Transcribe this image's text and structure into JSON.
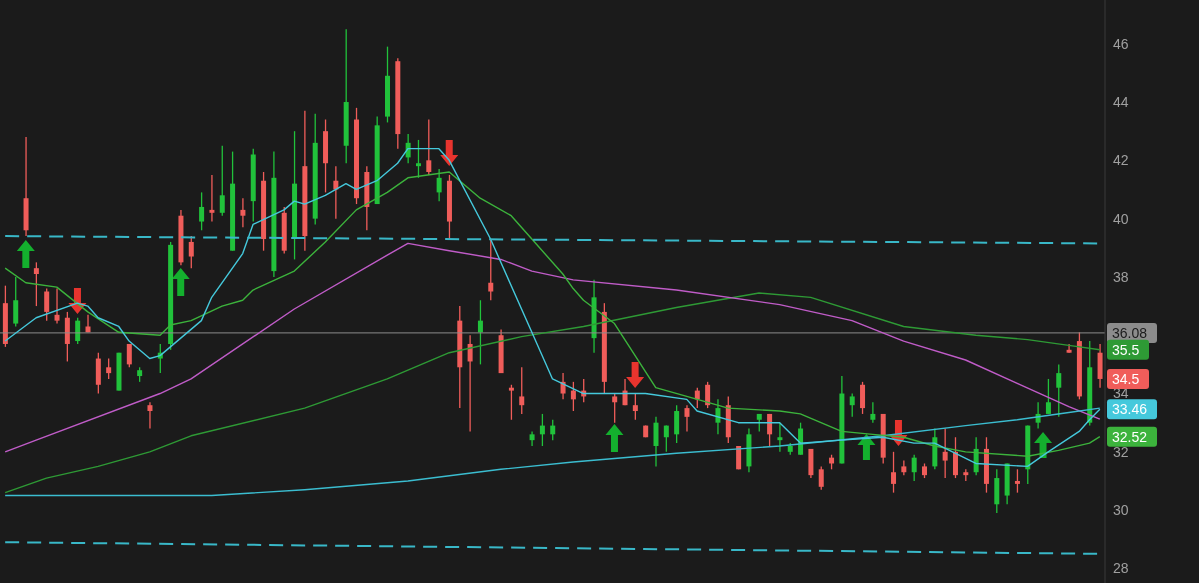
{
  "chart_data": {
    "type": "candlestick",
    "categories": [
      null,
      null,
      null,
      null,
      null,
      null,
      null,
      null,
      null,
      null,
      null,
      null,
      null,
      null,
      null,
      null,
      null,
      null,
      null,
      null,
      null,
      null,
      null,
      null,
      null,
      null,
      null,
      null,
      null,
      null,
      null,
      null,
      null,
      null,
      null,
      null,
      null,
      null,
      null,
      null,
      null,
      null,
      null,
      null,
      null,
      null,
      null,
      null,
      null,
      null,
      null,
      null,
      null,
      null,
      null,
      null,
      null,
      null,
      null,
      null,
      null,
      null,
      null,
      null,
      null,
      null,
      null,
      null,
      null,
      null,
      null,
      null,
      null,
      null,
      null,
      null,
      null,
      null,
      null,
      null,
      null,
      null,
      null,
      null,
      null,
      null,
      null,
      null,
      null,
      null,
      null,
      null,
      null,
      null,
      null,
      null,
      null,
      null,
      null,
      null,
      null,
      null,
      null,
      null,
      null,
      null,
      null
    ],
    "ohlc": [
      [
        37.1,
        37.7,
        35.6,
        35.7
      ],
      [
        36.4,
        38.0,
        36.3,
        37.2
      ],
      [
        40.7,
        42.8,
        39.4,
        39.6
      ],
      [
        38.3,
        38.5,
        37.0,
        38.1
      ],
      [
        37.5,
        37.6,
        36.5,
        36.8
      ],
      [
        36.7,
        37.6,
        36.4,
        36.5
      ],
      [
        36.6,
        36.8,
        35.1,
        35.7
      ],
      [
        35.8,
        36.6,
        35.7,
        36.5
      ],
      [
        36.3,
        36.7,
        36.1,
        36.1
      ],
      [
        35.2,
        35.4,
        34.0,
        34.3
      ],
      [
        34.9,
        35.2,
        34.5,
        34.7
      ],
      [
        34.1,
        35.4,
        34.1,
        35.4
      ],
      [
        35.7,
        35.7,
        34.9,
        35.0
      ],
      [
        34.6,
        34.9,
        34.4,
        34.8
      ],
      [
        33.6,
        33.7,
        32.8,
        33.4
      ],
      [
        35.2,
        35.7,
        34.7,
        35.4
      ],
      [
        35.7,
        39.2,
        35.5,
        39.1
      ],
      [
        40.1,
        40.3,
        38.4,
        38.5
      ],
      [
        39.2,
        39.4,
        38.3,
        38.7
      ],
      [
        39.9,
        40.9,
        39.6,
        40.4
      ],
      [
        40.3,
        41.5,
        39.9,
        40.2
      ],
      [
        40.2,
        42.5,
        40.1,
        40.8
      ],
      [
        38.9,
        42.3,
        38.9,
        41.2
      ],
      [
        40.3,
        40.7,
        39.7,
        40.1
      ],
      [
        40.6,
        42.4,
        39.9,
        42.2
      ],
      [
        41.3,
        41.6,
        38.9,
        39.3
      ],
      [
        38.2,
        42.3,
        38.0,
        41.4
      ],
      [
        40.2,
        40.4,
        38.8,
        38.9
      ],
      [
        39.3,
        43.0,
        38.6,
        41.2
      ],
      [
        41.8,
        43.7,
        38.9,
        39.4
      ],
      [
        40.0,
        43.6,
        39.8,
        42.6
      ],
      [
        43.0,
        43.4,
        40.9,
        41.9
      ],
      [
        41.3,
        41.8,
        40.0,
        41.0
      ],
      [
        42.5,
        46.5,
        41.9,
        44.0
      ],
      [
        43.4,
        43.8,
        40.5,
        40.7
      ],
      [
        41.6,
        41.8,
        39.6,
        40.4
      ],
      [
        40.5,
        43.5,
        40.5,
        43.2
      ],
      [
        43.5,
        45.9,
        43.3,
        44.9
      ],
      [
        45.4,
        45.5,
        42.4,
        42.9
      ],
      [
        42.1,
        42.9,
        41.9,
        42.6
      ],
      [
        41.8,
        42.7,
        41.4,
        41.9
      ],
      [
        42.0,
        43.4,
        41.5,
        41.6
      ],
      [
        40.9,
        41.7,
        40.6,
        41.4
      ],
      [
        41.3,
        41.5,
        39.3,
        39.9
      ],
      [
        36.5,
        37.0,
        33.5,
        34.9
      ],
      [
        35.7,
        36.0,
        32.7,
        35.1
      ],
      [
        36.1,
        37.2,
        35.0,
        36.5
      ],
      [
        37.8,
        39.3,
        37.2,
        37.5
      ],
      [
        36.0,
        36.2,
        34.7,
        34.7
      ],
      [
        34.2,
        34.3,
        33.1,
        34.1
      ],
      [
        33.9,
        34.9,
        33.3,
        33.6
      ],
      [
        32.4,
        32.7,
        32.2,
        32.6
      ],
      [
        32.6,
        33.3,
        32.2,
        32.9
      ],
      [
        32.6,
        33.1,
        32.4,
        32.9
      ],
      [
        34.4,
        34.7,
        33.8,
        34.0
      ],
      [
        34.1,
        34.4,
        33.4,
        33.8
      ],
      [
        34.1,
        34.5,
        33.7,
        33.9
      ],
      [
        35.9,
        37.9,
        35.4,
        37.3
      ],
      [
        36.8,
        37.1,
        34.0,
        34.4
      ],
      [
        33.9,
        34.0,
        33.0,
        33.7
      ],
      [
        34.1,
        34.5,
        33.6,
        33.6
      ],
      [
        33.6,
        34.0,
        33.1,
        33.4
      ],
      [
        32.9,
        32.9,
        32.5,
        32.5
      ],
      [
        32.2,
        33.2,
        31.5,
        33.0
      ],
      [
        32.5,
        32.9,
        32.0,
        32.9
      ],
      [
        32.6,
        33.6,
        32.3,
        33.4
      ],
      [
        33.5,
        33.6,
        32.7,
        33.2
      ],
      [
        34.1,
        34.2,
        33.5,
        33.8
      ],
      [
        34.3,
        34.4,
        33.5,
        33.6
      ],
      [
        33.0,
        33.8,
        32.6,
        33.5
      ],
      [
        33.6,
        33.9,
        32.3,
        32.5
      ],
      [
        32.2,
        32.2,
        31.4,
        31.4
      ],
      [
        31.5,
        32.8,
        31.3,
        32.6
      ],
      [
        33.1,
        33.3,
        32.7,
        33.3
      ],
      [
        33.3,
        33.3,
        32.2,
        32.6
      ],
      [
        32.4,
        33.0,
        32.0,
        32.5
      ],
      [
        32.0,
        32.3,
        31.9,
        32.2
      ],
      [
        31.9,
        33.0,
        31.9,
        32.8
      ],
      [
        32.1,
        32.1,
        31.1,
        31.2
      ],
      [
        31.4,
        31.5,
        30.7,
        30.8
      ],
      [
        31.8,
        31.9,
        31.4,
        31.6
      ],
      [
        31.6,
        34.6,
        31.6,
        34.0
      ],
      [
        33.6,
        34.0,
        33.2,
        33.9
      ],
      [
        34.3,
        34.4,
        33.3,
        33.5
      ],
      [
        33.1,
        33.7,
        33.0,
        33.3
      ],
      [
        33.3,
        33.3,
        31.6,
        31.8
      ],
      [
        31.3,
        32.0,
        30.6,
        30.9
      ],
      [
        31.5,
        31.7,
        31.2,
        31.3
      ],
      [
        31.3,
        31.9,
        31.0,
        31.8
      ],
      [
        31.5,
        31.6,
        31.1,
        31.2
      ],
      [
        31.5,
        32.8,
        31.4,
        32.5
      ],
      [
        32.0,
        32.8,
        31.1,
        31.7
      ],
      [
        32.0,
        32.5,
        31.1,
        31.2
      ],
      [
        31.3,
        31.4,
        31.0,
        31.2
      ],
      [
        31.3,
        32.5,
        31.2,
        32.1
      ],
      [
        32.1,
        32.5,
        30.6,
        30.9
      ],
      [
        30.2,
        31.4,
        29.9,
        31.1
      ],
      [
        30.5,
        31.6,
        30.2,
        31.6
      ],
      [
        31.0,
        31.4,
        30.6,
        30.9
      ],
      [
        31.4,
        32.9,
        30.9,
        32.9
      ],
      [
        33.0,
        33.7,
        32.8,
        33.3
      ],
      [
        33.3,
        34.5,
        33.3,
        33.7
      ],
      [
        34.2,
        35.0,
        33.2,
        34.7
      ],
      [
        35.5,
        35.7,
        35.4,
        35.4
      ],
      [
        35.8,
        36.1,
        33.8,
        33.9
      ],
      [
        33.0,
        35.8,
        32.9,
        34.9
      ],
      [
        35.4,
        35.7,
        34.2,
        34.5
      ]
    ],
    "colors": [
      "#f05d5a",
      "#21c23b",
      "#f05d5a",
      "#f05d5a",
      "#f05d5a",
      "#f05d5a",
      "#f05d5a",
      "#21c23b",
      "#f05d5a",
      "#f05d5a",
      "#f05d5a",
      "#21c23b",
      "#f05d5a",
      "#21c23b",
      "#f05d5a",
      "#21c23b",
      "#21c23b",
      "#f05d5a",
      "#f05d5a",
      "#21c23b",
      "#f05d5a",
      "#21c23b",
      "#21c23b",
      "#f05d5a",
      "#21c23b",
      "#f05d5a",
      "#21c23b",
      "#f05d5a",
      "#21c23b",
      "#f05d5a",
      "#21c23b",
      "#f05d5a",
      "#f05d5a",
      "#21c23b",
      "#f05d5a",
      "#f05d5a",
      "#21c23b",
      "#21c23b",
      "#f05d5a",
      "#21c23b",
      "#21c23b",
      "#f05d5a",
      "#21c23b",
      "#f05d5a",
      "#f05d5a",
      "#f05d5a",
      "#21c23b",
      "#f05d5a",
      "#f05d5a",
      "#f05d5a",
      "#f05d5a",
      "#21c23b",
      "#21c23b",
      "#21c23b",
      "#f05d5a",
      "#f05d5a",
      "#f05d5a",
      "#21c23b",
      "#f05d5a",
      "#f05d5a",
      "#f05d5a",
      "#f05d5a",
      "#f05d5a",
      "#21c23b",
      "#21c23b",
      "#21c23b",
      "#f05d5a",
      "#f05d5a",
      "#f05d5a",
      "#21c23b",
      "#f05d5a",
      "#f05d5a",
      "#21c23b",
      "#21c23b",
      "#f05d5a",
      "#21c23b",
      "#21c23b",
      "#21c23b",
      "#f05d5a",
      "#f05d5a",
      "#f05d5a",
      "#21c23b",
      "#21c23b",
      "#f05d5a",
      "#21c23b",
      "#f05d5a",
      "#f05d5a",
      "#f05d5a",
      "#21c23b",
      "#f05d5a",
      "#21c23b",
      "#f05d5a",
      "#f05d5a",
      "#f05d5a",
      "#21c23b",
      "#f05d5a",
      "#21c23b",
      "#21c23b",
      "#f05d5a",
      "#21c23b",
      "#21c23b",
      "#21c23b",
      "#21c23b",
      "#f05d5a",
      "#f05d5a",
      "#21c23b",
      "#f05d5a"
    ],
    "series": [
      {
        "type": "line",
        "color": "#2e9a35",
        "value_labels": [
          null,
          null,
          null,
          null,
          null,
          null,
          null,
          null,
          null,
          null,
          null,
          null,
          null,
          null,
          null,
          null,
          null,
          null,
          null,
          null,
          null,
          null,
          null,
          null,
          null,
          null,
          null,
          null,
          null,
          null,
          null,
          null,
          null,
          null,
          null,
          null,
          null,
          null,
          null,
          null,
          null,
          null,
          null,
          null,
          null,
          null,
          null,
          null,
          null,
          null,
          null,
          null,
          null,
          null,
          null,
          null,
          null,
          null,
          null,
          null,
          null,
          null,
          null,
          null,
          null,
          null,
          null,
          null,
          null,
          null,
          null,
          null,
          null,
          null,
          null,
          null,
          null,
          null,
          null,
          null,
          null,
          null,
          null,
          null,
          null,
          null,
          null,
          null,
          null,
          null,
          null,
          null,
          null,
          null,
          null,
          null,
          null,
          null,
          null,
          null,
          null,
          null,
          null,
          null,
          null,
          null,
          "35.5"
        ],
        "values": [
          30.6,
          null,
          null,
          null,
          31.1,
          null,
          null,
          null,
          null,
          31.5,
          null,
          null,
          null,
          null,
          32.0,
          null,
          null,
          null,
          32.55,
          null,
          null,
          null,
          null,
          null,
          null,
          null,
          null,
          null,
          null,
          33.5,
          null,
          null,
          null,
          null,
          null,
          null,
          null,
          34.5,
          null,
          null,
          null,
          null,
          null,
          35.4,
          null,
          null,
          null,
          null,
          null,
          null,
          35.95,
          null,
          null,
          null,
          null,
          null,
          36.3,
          null,
          null,
          null,
          null,
          null,
          null,
          null,
          null,
          36.95,
          null,
          null,
          null,
          null,
          null,
          null,
          null,
          37.45,
          null,
          null,
          null,
          null,
          37.3,
          null,
          null,
          null,
          null,
          null,
          null,
          null,
          null,
          36.3,
          null,
          null,
          null,
          null,
          null,
          null,
          36.0,
          null,
          null,
          null,
          null,
          35.85,
          null,
          null,
          null,
          35.65,
          null,
          null,
          35.5
        ]
      },
      {
        "type": "line",
        "color": "#c05cc8",
        "values": [
          32.0,
          null,
          null,
          32.4,
          null,
          null,
          null,
          null,
          null,
          null,
          null,
          null,
          null,
          null,
          null,
          34.0,
          null,
          null,
          34.5,
          null,
          null,
          null,
          null,
          null,
          null,
          null,
          null,
          null,
          36.9,
          null,
          null,
          null,
          null,
          null,
          null,
          null,
          null,
          38.75,
          null,
          39.15,
          null,
          null,
          null,
          38.9,
          null,
          null,
          null,
          null,
          38.6,
          null,
          null,
          38.2,
          null,
          null,
          null,
          37.9,
          null,
          null,
          null,
          null,
          null,
          null,
          null,
          null,
          null,
          37.55,
          null,
          null,
          null,
          null,
          null,
          null,
          null,
          null,
          null,
          37.05,
          null,
          null,
          null,
          null,
          null,
          null,
          36.5,
          null,
          null,
          null,
          null,
          35.8,
          null,
          null,
          null,
          null,
          null,
          35.15,
          null,
          null,
          null,
          null,
          34.35,
          null,
          null,
          null,
          null,
          33.55,
          null,
          null,
          33.12
        ]
      },
      {
        "type": "line",
        "color": "#3bbdd0",
        "values": [
          30.5,
          null,
          null,
          null,
          null,
          null,
          null,
          null,
          null,
          null,
          null,
          null,
          null,
          null,
          null,
          null,
          null,
          null,
          null,
          null,
          30.5,
          null,
          null,
          null,
          null,
          null,
          null,
          null,
          null,
          30.7,
          null,
          null,
          null,
          null,
          null,
          null,
          null,
          null,
          null,
          31.0,
          null,
          null,
          null,
          null,
          null,
          null,
          null,
          null,
          31.4,
          null,
          null,
          null,
          null,
          null,
          null,
          31.65,
          null,
          null,
          null,
          null,
          null,
          null,
          null,
          null,
          null,
          31.95,
          null,
          null,
          null,
          null,
          null,
          null,
          null,
          null,
          null,
          32.2,
          null,
          null,
          null,
          null,
          null,
          null,
          null,
          null,
          null,
          32.55,
          null,
          null,
          null,
          null,
          null,
          null,
          null,
          32.9,
          null,
          null,
          null,
          null,
          33.1,
          null,
          null,
          null,
          null,
          33.35,
          null,
          null,
          33.5
        ]
      },
      {
        "type": "line",
        "color": "#3cb33c",
        "value_labels": [
          null,
          null,
          null,
          null,
          null,
          null,
          null,
          null,
          null,
          null,
          null,
          null,
          null,
          null,
          null,
          null,
          null,
          null,
          null,
          null,
          null,
          null,
          null,
          null,
          null,
          null,
          null,
          null,
          null,
          null,
          null,
          null,
          null,
          null,
          null,
          null,
          null,
          null,
          null,
          null,
          null,
          null,
          null,
          null,
          null,
          null,
          null,
          null,
          null,
          null,
          null,
          null,
          null,
          null,
          null,
          null,
          null,
          null,
          null,
          null,
          null,
          null,
          null,
          null,
          null,
          null,
          null,
          null,
          null,
          null,
          null,
          null,
          null,
          null,
          null,
          null,
          null,
          null,
          null,
          null,
          null,
          null,
          null,
          null,
          null,
          null,
          null,
          null,
          null,
          null,
          null,
          null,
          null,
          null,
          null,
          null,
          null,
          null,
          null,
          null,
          null,
          null,
          null,
          null,
          null,
          null,
          "32.52"
        ],
        "values": [
          38.3,
          null,
          37.8,
          null,
          null,
          37.65,
          null,
          null,
          36.8,
          null,
          null,
          36.1,
          null,
          null,
          null,
          36.0,
          36.35,
          null,
          36.5,
          null,
          null,
          37.0,
          null,
          37.2,
          37.55,
          null,
          null,
          null,
          38.2,
          null,
          null,
          39.2,
          null,
          null,
          40.3,
          null,
          null,
          40.9,
          null,
          41.4,
          null,
          null,
          null,
          41.6,
          null,
          null,
          40.7,
          null,
          null,
          40.1,
          null,
          39.3,
          null,
          null,
          38.1,
          37.6,
          37.2,
          null,
          null,
          36.4,
          null,
          null,
          null,
          34.2,
          null,
          null,
          33.9,
          null,
          null,
          null,
          33.5,
          null,
          null,
          null,
          null,
          33.4,
          null,
          33.3,
          null,
          null,
          null,
          32.7,
          null,
          null,
          32.6,
          null,
          null,
          32.5,
          null,
          null,
          32.2,
          null,
          null,
          32.0,
          null,
          null,
          null,
          null,
          null,
          31.85,
          null,
          null,
          32.05,
          null,
          null,
          32.3,
          32.52
        ]
      },
      {
        "type": "line",
        "color": "#45c9dc",
        "value_labels": [
          null,
          null,
          null,
          null,
          null,
          null,
          null,
          null,
          null,
          null,
          null,
          null,
          null,
          null,
          null,
          null,
          null,
          null,
          null,
          null,
          null,
          null,
          null,
          null,
          null,
          null,
          null,
          null,
          null,
          null,
          null,
          null,
          null,
          null,
          null,
          null,
          null,
          null,
          null,
          null,
          null,
          null,
          null,
          null,
          null,
          null,
          null,
          null,
          null,
          null,
          null,
          null,
          null,
          null,
          null,
          null,
          null,
          null,
          null,
          null,
          null,
          null,
          null,
          null,
          null,
          null,
          null,
          null,
          null,
          null,
          null,
          null,
          null,
          null,
          null,
          null,
          null,
          null,
          null,
          null,
          null,
          null,
          null,
          null,
          null,
          null,
          null,
          null,
          null,
          null,
          null,
          null,
          null,
          null,
          null,
          null,
          null,
          null,
          null,
          null,
          null,
          null,
          null,
          null,
          null,
          null,
          "33.46"
        ],
        "values": [
          35.8,
          null,
          null,
          36.6,
          null,
          null,
          null,
          37.1,
          37.0,
          36.6,
          null,
          36.3,
          35.8,
          null,
          35.2,
          35.3,
          null,
          null,
          null,
          36.5,
          37.3,
          null,
          null,
          38.8,
          39.8,
          null,
          null,
          40.3,
          40.6,
          40.5,
          null,
          40.8,
          null,
          41.2,
          41.0,
          null,
          41.3,
          41.6,
          41.9,
          42.4,
          null,
          null,
          42.4,
          42.0,
          null,
          null,
          null,
          39.3,
          null,
          null,
          null,
          36.1,
          null,
          34.5,
          null,
          null,
          34.0,
          null,
          null,
          34.0,
          null,
          null,
          34.0,
          null,
          null,
          null,
          33.8,
          33.4,
          null,
          null,
          null,
          33.0,
          null,
          null,
          null,
          33.0,
          null,
          32.3,
          null,
          null,
          null,
          32.4,
          null,
          null,
          null,
          32.5,
          null,
          null,
          32.3,
          null,
          32.3,
          null,
          null,
          null,
          31.6,
          null,
          null,
          null,
          null,
          31.5,
          null,
          32.0,
          null,
          null,
          32.7,
          33.1,
          33.46
        ]
      },
      {
        "type": "line",
        "color": "#39b8c8",
        "line_style": "dashed",
        "values": [
          39.4,
          null,
          null,
          null,
          null,
          null,
          null,
          null,
          null,
          null,
          null,
          null,
          null,
          null,
          null,
          null,
          null,
          null,
          null,
          null,
          null,
          null,
          null,
          null,
          null,
          null,
          null,
          null,
          null,
          null,
          null,
          null,
          null,
          null,
          null,
          null,
          null,
          null,
          null,
          null,
          null,
          null,
          null,
          null,
          null,
          null,
          null,
          null,
          null,
          null,
          null,
          null,
          null,
          null,
          null,
          null,
          null,
          null,
          null,
          null,
          null,
          null,
          null,
          null,
          null,
          null,
          null,
          null,
          null,
          null,
          null,
          null,
          null,
          null,
          null,
          null,
          null,
          null,
          null,
          null,
          null,
          null,
          null,
          null,
          null,
          null,
          null,
          null,
          null,
          null,
          null,
          null,
          null,
          null,
          null,
          null,
          null,
          null,
          null,
          null,
          null,
          null,
          null,
          null,
          null,
          null,
          39.15
        ]
      },
      {
        "type": "line",
        "color": "#39b8c8",
        "line_style": "dashed",
        "values": [
          28.9,
          null,
          null,
          null,
          null,
          null,
          null,
          null,
          null,
          null,
          null,
          null,
          null,
          null,
          null,
          null,
          null,
          null,
          null,
          null,
          null,
          null,
          null,
          null,
          null,
          null,
          null,
          null,
          null,
          null,
          null,
          null,
          null,
          null,
          null,
          null,
          null,
          null,
          null,
          null,
          null,
          null,
          null,
          null,
          null,
          null,
          null,
          null,
          null,
          null,
          null,
          null,
          null,
          null,
          null,
          null,
          null,
          null,
          null,
          null,
          null,
          null,
          null,
          null,
          null,
          null,
          null,
          null,
          null,
          null,
          null,
          null,
          null,
          null,
          null,
          null,
          null,
          null,
          null,
          null,
          null,
          null,
          null,
          null,
          null,
          null,
          null,
          null,
          null,
          null,
          null,
          null,
          null,
          null,
          null,
          null,
          null,
          null,
          null,
          null,
          null,
          null,
          null,
          null,
          null,
          null,
          28.5
        ]
      }
    ],
    "ylim": [
      27.5,
      47.5
    ],
    "yticks": [
      28,
      30,
      32,
      34,
      38,
      40,
      42,
      44,
      46
    ],
    "tick_labels": "y",
    "ref_lines": [
      {
        "axis": "y",
        "value": 36.08,
        "label": "36.08",
        "color": "#8c8c8c"
      }
    ],
    "value_labels": [
      null,
      null,
      null,
      null,
      null,
      null,
      null,
      null,
      null,
      null,
      null,
      null,
      null,
      null,
      null,
      null,
      null,
      null,
      null,
      null,
      null,
      null,
      null,
      null,
      null,
      null,
      null,
      null,
      null,
      null,
      null,
      null,
      null,
      null,
      null,
      null,
      null,
      null,
      null,
      null,
      null,
      null,
      null,
      null,
      null,
      null,
      null,
      null,
      null,
      null,
      null,
      null,
      null,
      null,
      null,
      null,
      null,
      null,
      null,
      null,
      null,
      null,
      null,
      null,
      null,
      null,
      null,
      null,
      null,
      null,
      null,
      null,
      null,
      null,
      null,
      null,
      null,
      null,
      null,
      null,
      null,
      null,
      null,
      null,
      null,
      null,
      null,
      null,
      null,
      null,
      null,
      null,
      null,
      null,
      null,
      null,
      null,
      null,
      null,
      null,
      null,
      null,
      null,
      null,
      null,
      null,
      "34.5"
    ]
  }
}
